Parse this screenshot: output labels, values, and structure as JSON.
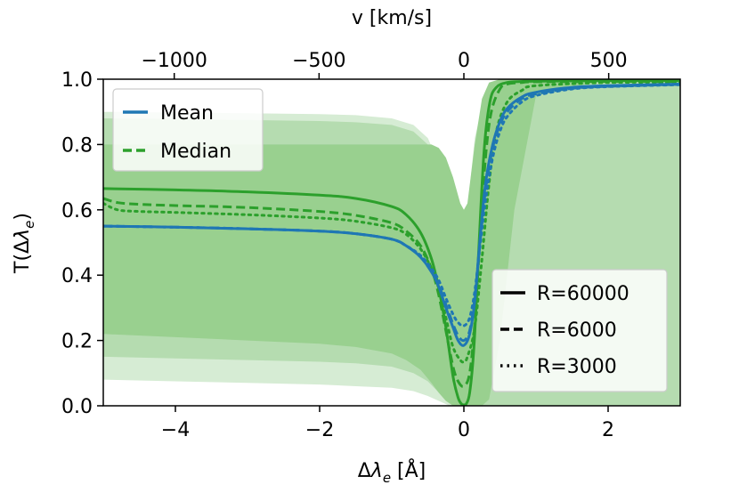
{
  "chart_data": {
    "type": "line",
    "title": "",
    "xlabel": "Δλ_e [Å]",
    "ylabel": "T(Δλ_e)",
    "top_xlabel": "v [km/s]",
    "xlim": [
      -5,
      3
    ],
    "ylim": [
      0.0,
      1.0
    ],
    "top_xlim_kms": [
      -1245,
      747
    ],
    "x_ticks": [
      -4,
      -2,
      0,
      2
    ],
    "x_tick_labels": [
      "−4",
      "−2",
      "0",
      "2"
    ],
    "y_ticks": [
      0.0,
      0.2,
      0.4,
      0.6,
      0.8,
      1.0
    ],
    "y_tick_labels": [
      "0.0",
      "0.2",
      "0.4",
      "0.6",
      "0.8",
      "1.0"
    ],
    "top_ticks_kms": [
      -1000,
      -500,
      0,
      500
    ],
    "top_tick_labels": [
      "−1000",
      "−500",
      "0",
      "500"
    ],
    "legend_stat": {
      "location": "top-left",
      "entries": [
        {
          "label": "Mean",
          "color": "#1f77b4"
        },
        {
          "label": "Median",
          "color": "#2ca02c"
        }
      ]
    },
    "legend_resolution": {
      "location": "bottom-right",
      "entries": [
        {
          "label": "R=60000",
          "style": "solid"
        },
        {
          "label": "R=6000",
          "style": "dashed"
        },
        {
          "label": "R=3000",
          "style": "dotted"
        }
      ]
    },
    "colors": {
      "mean": "#1f77b4",
      "median": "#2ca02c",
      "band_light": "#d6ecd4",
      "band_mid": "#b5dcb0",
      "band_dark": "#99d08f"
    },
    "bands": [
      {
        "name": "band-outer",
        "x": [
          -5,
          -4,
          -3,
          -2,
          -1.5,
          -1,
          -0.7,
          -0.5,
          -0.3,
          -0.2,
          -0.1,
          -0.05,
          0.0,
          0.05,
          0.15,
          0.3,
          0.45,
          0.6,
          0.8,
          1.0,
          2,
          3
        ],
        "upper": [
          0.9,
          0.898,
          0.896,
          0.893,
          0.89,
          0.88,
          0.86,
          0.82,
          0.72,
          0.64,
          0.56,
          0.53,
          0.52,
          0.6,
          0.82,
          0.96,
          0.995,
          1.0,
          1.0,
          1.0,
          1.0,
          1.0
        ],
        "lower": [
          0.08,
          0.075,
          0.07,
          0.065,
          0.06,
          0.055,
          0.045,
          0.03,
          0.01,
          0.0,
          0.0,
          0.0,
          0.0,
          0.0,
          0.0,
          0.0,
          0.0,
          0.0,
          0.0,
          0.0,
          0.0,
          0.0
        ]
      },
      {
        "name": "band-middle",
        "x": [
          -5,
          -4,
          -3,
          -2,
          -1.5,
          -1,
          -0.7,
          -0.5,
          -0.3,
          -0.2,
          -0.1,
          -0.05,
          0.0,
          0.05,
          0.15,
          0.3,
          0.45,
          0.6,
          0.8,
          1.0,
          2,
          3
        ],
        "upper": [
          0.88,
          0.878,
          0.875,
          0.872,
          0.868,
          0.86,
          0.84,
          0.8,
          0.7,
          0.62,
          0.54,
          0.515,
          0.51,
          0.58,
          0.8,
          0.95,
          0.99,
          1.0,
          1.0,
          1.0,
          1.0,
          1.0
        ],
        "lower": [
          0.15,
          0.145,
          0.14,
          0.135,
          0.13,
          0.12,
          0.1,
          0.075,
          0.03,
          0.01,
          0.0,
          0.0,
          0.0,
          0.0,
          0.0,
          0.0,
          0.0,
          0.0,
          0.0,
          0.0,
          0.0,
          0.0
        ]
      },
      {
        "name": "band-inner",
        "x": [
          -5,
          -4,
          -3,
          -2,
          -1.5,
          -1,
          -0.8,
          -0.6,
          -0.45,
          -0.35,
          -0.25,
          -0.15,
          -0.05,
          0.0,
          0.05,
          0.15,
          0.25,
          0.35,
          0.5,
          0.7,
          1.0,
          2,
          3
        ],
        "upper": [
          0.8,
          0.8,
          0.8,
          0.8,
          0.8,
          0.8,
          0.8,
          0.8,
          0.8,
          0.79,
          0.76,
          0.7,
          0.62,
          0.6,
          0.62,
          0.8,
          0.94,
          0.99,
          1.0,
          1.0,
          1.0,
          1.0,
          1.0
        ],
        "lower": [
          0.22,
          0.21,
          0.2,
          0.19,
          0.18,
          0.16,
          0.14,
          0.11,
          0.07,
          0.04,
          0.015,
          0.0,
          0.0,
          0.0,
          0.0,
          0.0,
          0.0,
          0.02,
          0.2,
          0.6,
          0.95,
          1.0,
          1.0
        ]
      }
    ],
    "series": [
      {
        "name": "Median R=60000",
        "stat": "median",
        "style": "solid",
        "x": [
          -5,
          -4,
          -3,
          -2,
          -1.5,
          -1,
          -0.8,
          -0.6,
          -0.45,
          -0.35,
          -0.25,
          -0.15,
          -0.08,
          -0.03,
          0.0,
          0.03,
          0.08,
          0.14,
          0.2,
          0.28,
          0.36,
          0.45,
          0.6,
          0.8,
          1.0,
          2,
          3
        ],
        "y": [
          0.665,
          0.661,
          0.655,
          0.645,
          0.635,
          0.61,
          0.585,
          0.53,
          0.45,
          0.36,
          0.24,
          0.09,
          0.025,
          0.005,
          0.003,
          0.005,
          0.04,
          0.18,
          0.45,
          0.78,
          0.93,
          0.975,
          0.99,
          0.993,
          0.994,
          0.995,
          0.995
        ]
      },
      {
        "name": "Median R=6000",
        "stat": "median",
        "style": "dashed",
        "x": [
          -5,
          -4.8,
          -4.5,
          -4,
          -3,
          -2,
          -1.5,
          -1,
          -0.8,
          -0.6,
          -0.45,
          -0.35,
          -0.25,
          -0.15,
          -0.08,
          0.0,
          0.08,
          0.15,
          0.22,
          0.3,
          0.38,
          0.5,
          0.6,
          0.8,
          1.0,
          2,
          3
        ],
        "y": [
          0.635,
          0.622,
          0.617,
          0.613,
          0.607,
          0.595,
          0.583,
          0.56,
          0.535,
          0.49,
          0.42,
          0.34,
          0.23,
          0.12,
          0.075,
          0.06,
          0.1,
          0.25,
          0.5,
          0.76,
          0.9,
          0.97,
          0.985,
          0.99,
          0.992,
          0.993,
          0.993
        ]
      },
      {
        "name": "Median R=3000",
        "stat": "median",
        "style": "dotted",
        "x": [
          -5,
          -4.8,
          -4.5,
          -4,
          -3,
          -2,
          -1.5,
          -1,
          -0.8,
          -0.6,
          -0.45,
          -0.35,
          -0.25,
          -0.15,
          -0.05,
          0.0,
          0.05,
          0.15,
          0.25,
          0.35,
          0.45,
          0.6,
          0.8,
          1.0,
          2,
          3
        ],
        "y": [
          0.62,
          0.6,
          0.595,
          0.592,
          0.585,
          0.575,
          0.565,
          0.545,
          0.525,
          0.48,
          0.42,
          0.36,
          0.27,
          0.18,
          0.14,
          0.135,
          0.15,
          0.24,
          0.45,
          0.68,
          0.84,
          0.93,
          0.965,
          0.98,
          0.99,
          0.99
        ]
      },
      {
        "name": "Mean R=60000",
        "stat": "mean",
        "style": "solid",
        "x": [
          -5,
          -4,
          -3,
          -2,
          -1.5,
          -1,
          -0.8,
          -0.6,
          -0.45,
          -0.35,
          -0.25,
          -0.15,
          -0.08,
          0.0,
          0.08,
          0.15,
          0.22,
          0.3,
          0.4,
          0.5,
          0.6,
          0.8,
          1.0,
          1.5,
          2,
          3
        ],
        "y": [
          0.55,
          0.547,
          0.542,
          0.535,
          0.527,
          0.51,
          0.49,
          0.455,
          0.41,
          0.365,
          0.3,
          0.24,
          0.2,
          0.185,
          0.22,
          0.32,
          0.5,
          0.68,
          0.8,
          0.87,
          0.91,
          0.945,
          0.96,
          0.975,
          0.98,
          0.985
        ]
      },
      {
        "name": "Mean R=6000",
        "stat": "mean",
        "style": "dashed",
        "x": [
          -5,
          -4,
          -3,
          -2,
          -1.5,
          -1,
          -0.8,
          -0.6,
          -0.45,
          -0.35,
          -0.25,
          -0.15,
          -0.08,
          0.0,
          0.08,
          0.15,
          0.22,
          0.3,
          0.4,
          0.5,
          0.6,
          0.8,
          1.0,
          1.5,
          2,
          3
        ],
        "y": [
          0.55,
          0.547,
          0.542,
          0.535,
          0.527,
          0.51,
          0.49,
          0.455,
          0.41,
          0.37,
          0.31,
          0.25,
          0.215,
          0.2,
          0.23,
          0.33,
          0.49,
          0.66,
          0.79,
          0.86,
          0.9,
          0.94,
          0.955,
          0.972,
          0.978,
          0.984
        ]
      },
      {
        "name": "Mean R=3000",
        "stat": "mean",
        "style": "dotted",
        "x": [
          -5,
          -4,
          -3,
          -2,
          -1.5,
          -1,
          -0.8,
          -0.6,
          -0.45,
          -0.35,
          -0.25,
          -0.15,
          -0.08,
          0.0,
          0.08,
          0.15,
          0.22,
          0.3,
          0.4,
          0.5,
          0.6,
          0.8,
          1.0,
          1.5,
          2,
          3
        ],
        "y": [
          0.55,
          0.547,
          0.542,
          0.535,
          0.527,
          0.51,
          0.49,
          0.46,
          0.42,
          0.385,
          0.33,
          0.28,
          0.255,
          0.245,
          0.27,
          0.35,
          0.48,
          0.63,
          0.76,
          0.84,
          0.885,
          0.93,
          0.95,
          0.97,
          0.977,
          0.983
        ]
      }
    ]
  }
}
